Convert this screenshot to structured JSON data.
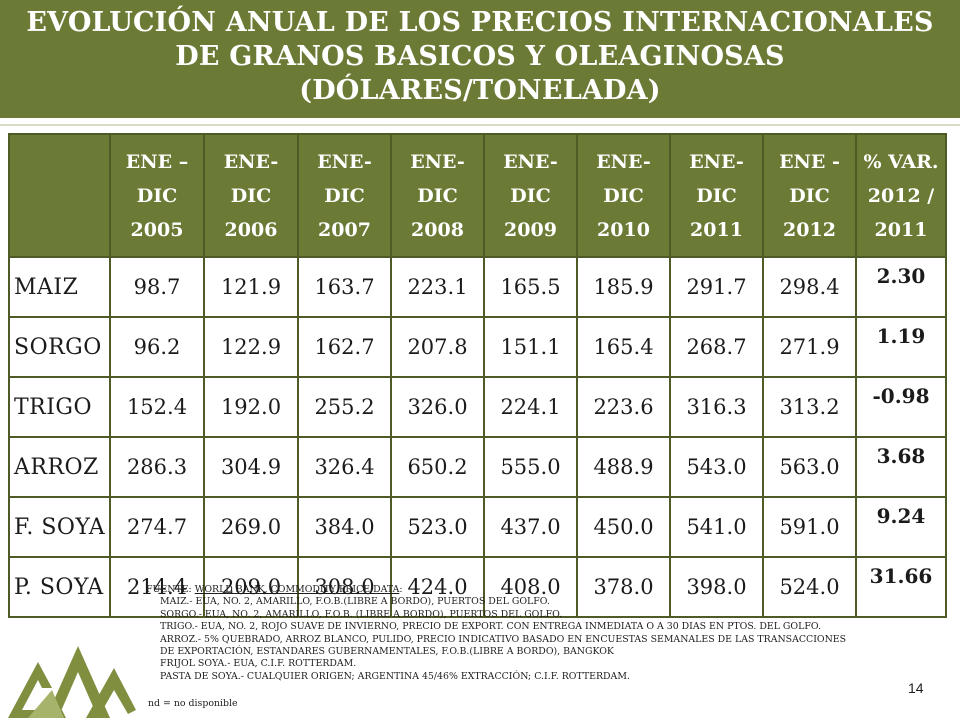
{
  "title": {
    "line1": "EVOLUCIÓN ANUAL DE LOS PRECIOS INTERNACIONALES",
    "line2": "DE GRANOS BASICOS Y OLEAGINOSAS",
    "line3": "(DÓLARES/TONELADA)"
  },
  "table": {
    "headers": [
      [
        "ENE –",
        "DIC",
        "2005"
      ],
      [
        "ENE-",
        "DIC",
        "2006"
      ],
      [
        "ENE-",
        "DIC",
        "2007"
      ],
      [
        "ENE-",
        "DIC",
        "2008"
      ],
      [
        "ENE-",
        "DIC",
        "2009"
      ],
      [
        "ENE-",
        "DIC",
        "2010"
      ],
      [
        "ENE-",
        "DIC",
        "2011"
      ],
      [
        "ENE -",
        "DIC",
        "2012"
      ],
      [
        "% VAR.",
        "2012 /",
        "2011"
      ]
    ],
    "rows": [
      {
        "name": "MAIZ",
        "values": [
          "98.7",
          "121.9",
          "163.7",
          "223.1",
          "165.5",
          "185.9",
          "291.7",
          "298.4"
        ],
        "var": "2.30"
      },
      {
        "name": "SORGO",
        "values": [
          "96.2",
          "122.9",
          "162.7",
          "207.8",
          "151.1",
          "165.4",
          "268.7",
          "271.9"
        ],
        "var": "1.19"
      },
      {
        "name": "TRIGO",
        "values": [
          "152.4",
          "192.0",
          "255.2",
          "326.0",
          "224.1",
          "223.6",
          "316.3",
          "313.2"
        ],
        "var": "-0.98"
      },
      {
        "name": "ARROZ",
        "values": [
          "286.3",
          "304.9",
          "326.4",
          "650.2",
          "555.0",
          "488.9",
          "543.0",
          "563.0"
        ],
        "var": "3.68"
      },
      {
        "name": "F. SOYA",
        "values": [
          "274.7",
          "269.0",
          "384.0",
          "523.0",
          "437.0",
          "450.0",
          "541.0",
          "591.0"
        ],
        "var": "9.24"
      },
      {
        "name": "P. SOYA",
        "values": [
          "214.4",
          "209.0",
          "308.0",
          "424.0",
          "408.0",
          "378.0",
          "398.0",
          "524.0"
        ],
        "var": "31.66"
      }
    ]
  },
  "notes": {
    "source_prefix": "FUENTE: ",
    "source_link": "WORLD BANK, COMMODITY PRICE DATA",
    "source_suffix": ":",
    "lines": [
      "MAIZ.-    EUA, NO. 2, AMARILLO, F.O.B.(LIBRE A BORDO), PUERTOS DEL GOLFO.",
      "SORGO.- EUA, NO. 2, AMARILLO, F.O.B. (LIBRE A BORDO), PUERTOS DEL GOLFO.",
      "TRIGO.-  EUA, NO. 2, ROJO SUAVE DE INVIERNO,  PRECIO DE EXPORT. CON ENTREGA INMEDIATA O A 30 DIAS EN PTOS. DEL GOLFO.",
      "ARROZ.- 5% QUEBRADO, ARROZ BLANCO,  PULIDO, PRECIO INDICATIVO BASADO  EN  ENCUESTAS SEMANALES DE LAS TRANSACCIONES",
      "DE EXPORTACIÓN, ESTANDARES GUBERNAMENTALES,  F.O.B.(LIBRE A BORDO),  BANGKOK",
      "FRIJOL SOYA.-  EUA, C.I.F. ROTTERDAM.",
      "PASTA DE SOYA.- CUALQUIER ORIGEN; ARGENTINA 45/46% EXTRACCIÓN; C.I.F. ROTTERDAM."
    ],
    "nd": "nd  = no disponible"
  },
  "page_number": "14",
  "colors": {
    "header_green": "#6b7a35",
    "border_green": "#4f5b26",
    "logo_green": "#7f8f3f"
  },
  "icons": {
    "logo": "mountains-logo"
  }
}
